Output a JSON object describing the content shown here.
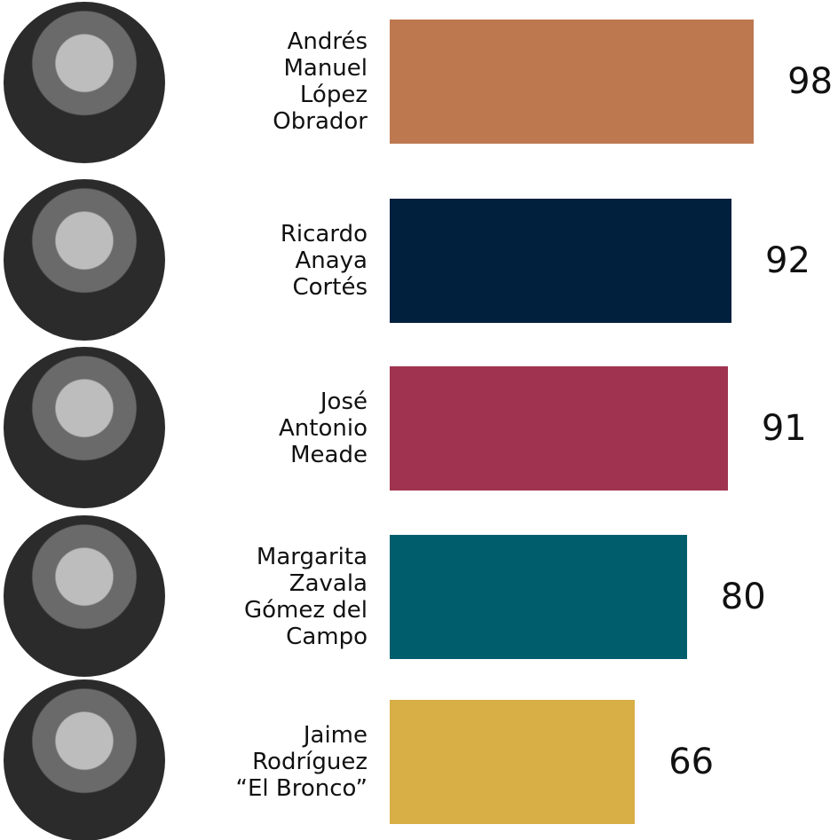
{
  "chart_data": {
    "type": "bar",
    "categories": [
      "Andrés\nManuel\nLópez\nObrador",
      "Ricardo\nAnaya\nCortés",
      "José\nAntonio\nMeade",
      "Margarita\nZavala\nGómez del\nCampo",
      "Jaime\nRodríguez\n“El Bronco”"
    ],
    "values": [
      98,
      92,
      91,
      80,
      66
    ],
    "colors": [
      "#bd7850",
      "#00203d",
      "#a0334f",
      "#005e6c",
      "#d8ae46"
    ]
  }
}
